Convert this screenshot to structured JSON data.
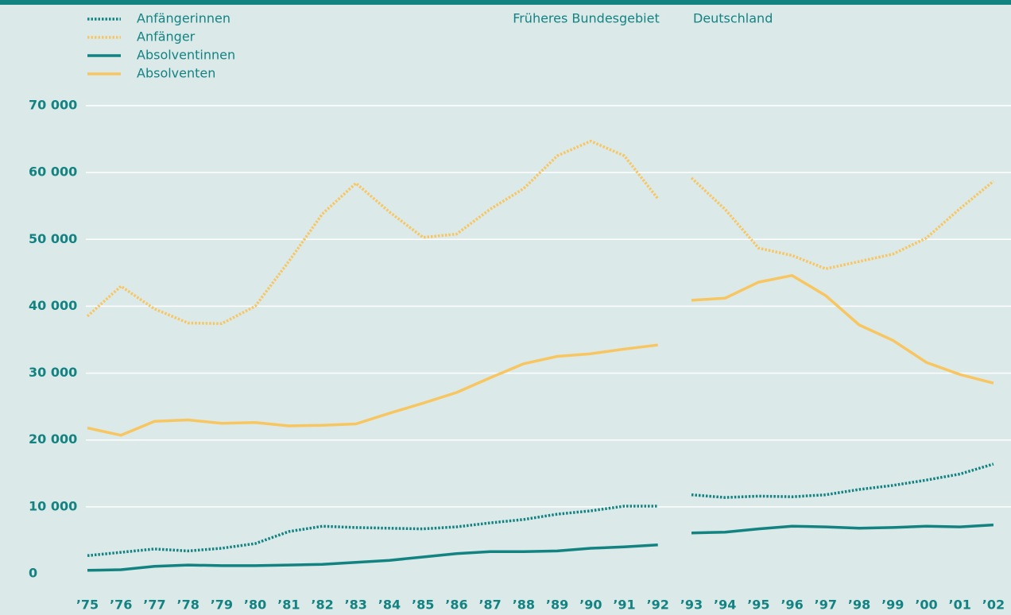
{
  "chart_data": {
    "type": "line",
    "groups": [
      {
        "label": "Früheres Bundesgebiet",
        "categories": [
          "’75",
          "’76",
          "’77",
          "’78",
          "’79",
          "’80",
          "’81",
          "’82",
          "’83",
          "’84",
          "’85",
          "’86",
          "’87",
          "’88",
          "’89",
          "’90",
          "’91",
          "’92"
        ]
      },
      {
        "label": "Deutschland",
        "categories": [
          "’93",
          "’94",
          "’95",
          "’96",
          "’97",
          "’98",
          "’99",
          "’00",
          "’01",
          "’02"
        ]
      }
    ],
    "series": [
      {
        "name": "Anfängerinnen",
        "color": "#138382",
        "style": "dotted",
        "values": [
          2700,
          3200,
          3700,
          3400,
          3800,
          4500,
          6300,
          7100,
          6900,
          6800,
          6700,
          7000,
          7600,
          8100,
          8900,
          9400,
          10100,
          10100,
          11800,
          11400,
          11600,
          11500,
          11800,
          12600,
          13200,
          14000,
          14900,
          16400
        ]
      },
      {
        "name": "Anfänger",
        "color": "#f8c660",
        "style": "dotted",
        "values": [
          38500,
          43000,
          39600,
          37500,
          37400,
          40000,
          46700,
          53800,
          58400,
          54100,
          50300,
          50800,
          54500,
          57600,
          62500,
          64700,
          62500,
          56100,
          59200,
          54500,
          48700,
          47600,
          45600,
          46700,
          47800,
          50200,
          54600,
          58700
        ]
      },
      {
        "name": "Absolventinnen",
        "color": "#138382",
        "style": "solid",
        "values": [
          500,
          600,
          1100,
          1300,
          1200,
          1200,
          1300,
          1400,
          1700,
          2000,
          2500,
          3000,
          3300,
          3300,
          3400,
          3800,
          4000,
          4300,
          6100,
          6200,
          6700,
          7100,
          7000,
          6800,
          6900,
          7100,
          7000,
          7300
        ]
      },
      {
        "name": "Absolventen",
        "color": "#f8c660",
        "style": "solid",
        "values": [
          21800,
          20700,
          22800,
          23000,
          22500,
          22600,
          22100,
          22200,
          22400,
          24000,
          25500,
          27100,
          29300,
          31400,
          32500,
          32900,
          33600,
          34200,
          40900,
          41200,
          43600,
          44600,
          41600,
          37200,
          34900,
          31600,
          29800,
          28500
        ]
      }
    ],
    "ylim": [
      0,
      70000
    ],
    "yticks": [
      0,
      {
        "value": 10000,
        "label": "10 000"
      },
      {
        "value": 20000,
        "label": "20 000"
      },
      {
        "value": 30000,
        "label": "30 000"
      },
      {
        "value": 40000,
        "label": "40 000"
      },
      {
        "value": 50000,
        "label": "50 000"
      },
      {
        "value": 60000,
        "label": "60 000"
      },
      {
        "value": 70000,
        "label": "70 000"
      }
    ],
    "grid": true
  }
}
